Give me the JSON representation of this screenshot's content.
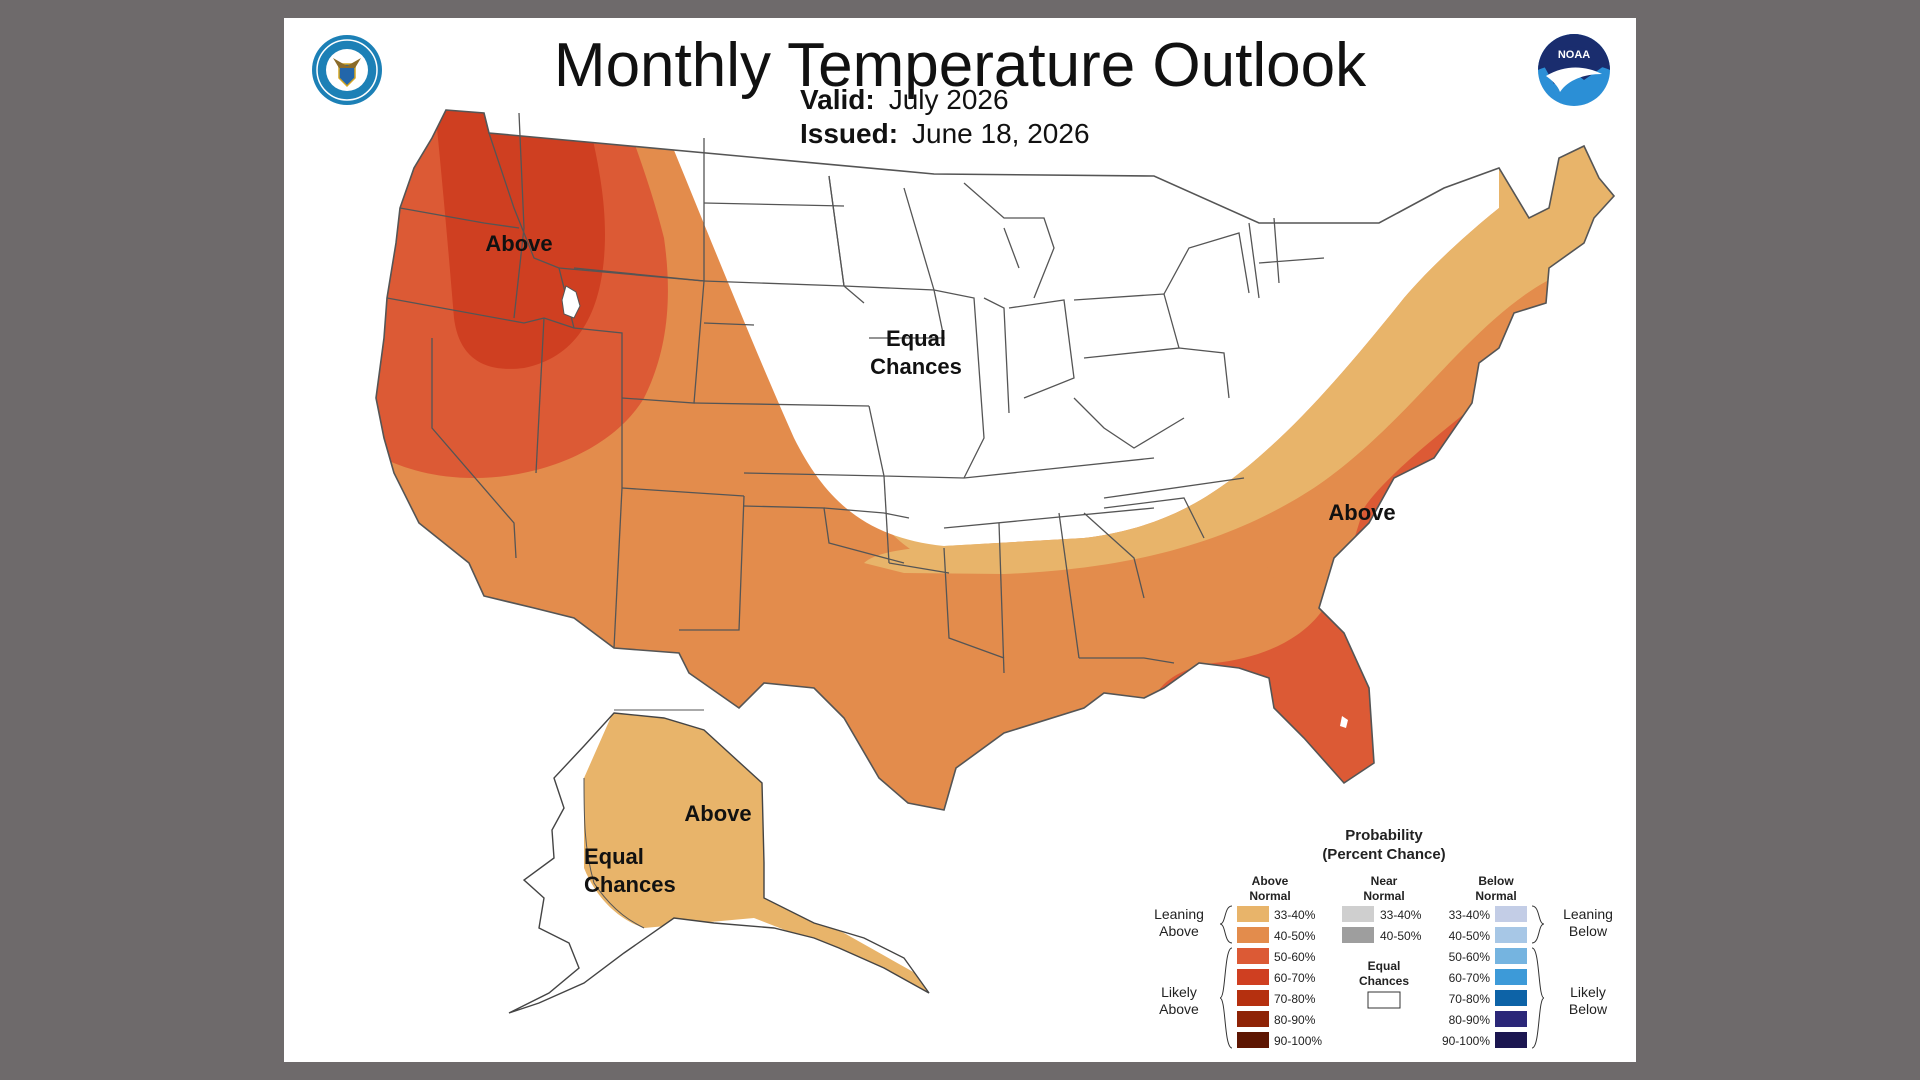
{
  "header": {
    "title": "Monthly Temperature Outlook",
    "valid_label": "Valid:",
    "valid_value": "July 2026",
    "issued_label": "Issued:",
    "issued_value": "June 18, 2026"
  },
  "logos": {
    "left": "department-of-commerce-seal",
    "right": "noaa-logo",
    "right_text": "NOAA"
  },
  "colors": {
    "above_33_40": "#e8b46a",
    "above_40_50": "#e38c4c",
    "above_50_60": "#dc5a35",
    "above_60_70": "#cf3f21",
    "above_70_80": "#b5300f",
    "above_80_90": "#8e2306",
    "above_90_100": "#5e1602",
    "near_33_40": "#cfcfcf",
    "near_40_50": "#9e9e9e",
    "below_33_40": "#c3cde6",
    "below_40_50": "#a7c7e6",
    "below_50_60": "#75b4e0",
    "below_60_70": "#3d9ad8",
    "below_70_80": "#0d63a7",
    "below_80_90": "#2b2778",
    "below_90_100": "#1b1650",
    "equal": "#ffffff"
  },
  "map_labels": {
    "northwest": "Above",
    "central_line1": "Equal",
    "central_line2": "Chances",
    "southeast": "Above",
    "alaska_above": "Above",
    "alaska_ec_line1": "Equal",
    "alaska_ec_line2": "Chances"
  },
  "legend": {
    "title_line1": "Probability",
    "title_line2": "(Percent Chance)",
    "above_head_line1": "Above",
    "above_head_line2": "Normal",
    "near_head_line1": "Near",
    "near_head_line2": "Normal",
    "below_head_line1": "Below",
    "below_head_line2": "Normal",
    "leaning_above_line1": "Leaning",
    "leaning_above_line2": "Above",
    "likely_above_line1": "Likely",
    "likely_above_line2": "Above",
    "leaning_below_line1": "Leaning",
    "leaning_below_line2": "Below",
    "likely_below_line1": "Likely",
    "likely_below_line2": "Below",
    "equal_line1": "Equal",
    "equal_line2": "Chances",
    "ranges": [
      "33-40%",
      "40-50%",
      "50-60%",
      "60-70%",
      "70-80%",
      "80-90%",
      "90-100%"
    ],
    "near_ranges": [
      "33-40%",
      "40-50%"
    ]
  }
}
